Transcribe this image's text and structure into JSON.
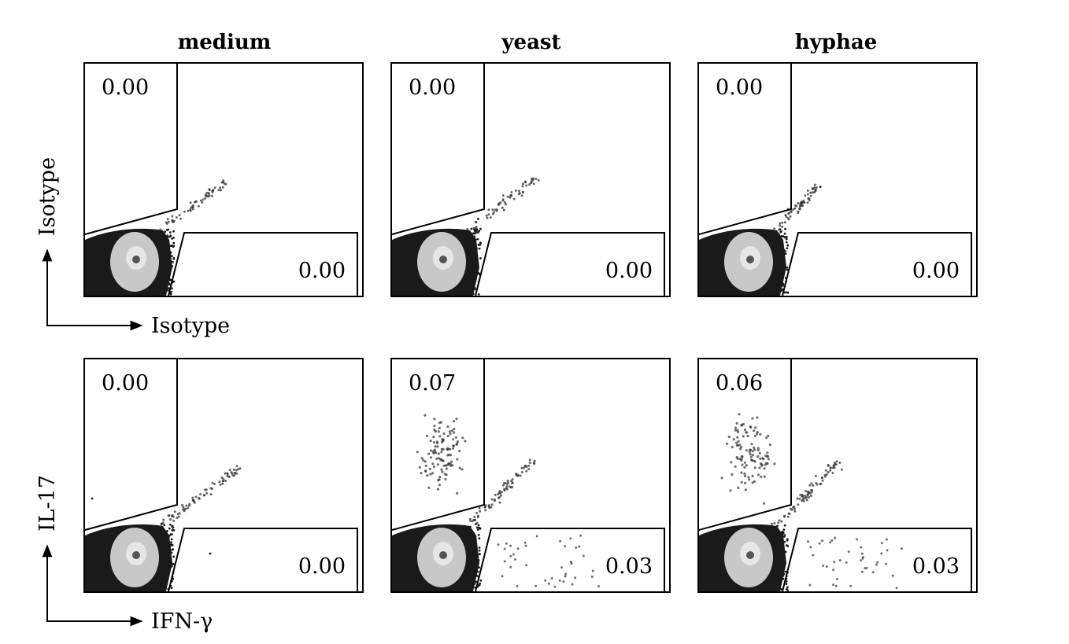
{
  "chart_data": {
    "type": "scatter",
    "columns": [
      "medium",
      "yeast",
      "hyphae"
    ],
    "rows": [
      {
        "row_id": "isotype",
        "xlabel": "Isotype",
        "ylabel": "Isotype",
        "panels": [
          {
            "column": "medium",
            "upper_left": "0.00",
            "lower_right": "0.00"
          },
          {
            "column": "yeast",
            "upper_left": "0.00",
            "lower_right": "0.00"
          },
          {
            "column": "hyphae",
            "upper_left": "0.00",
            "lower_right": "0.00"
          }
        ]
      },
      {
        "row_id": "stained",
        "xlabel": "IFN-γ",
        "ylabel": "IL-17",
        "panels": [
          {
            "column": "medium",
            "upper_left": "0.00",
            "lower_right": "0.00"
          },
          {
            "column": "yeast",
            "upper_left": "0.07",
            "lower_right": "0.03"
          },
          {
            "column": "hyphae",
            "upper_left": "0.06",
            "lower_right": "0.03"
          }
        ]
      }
    ],
    "legend": "none",
    "grid": false,
    "colors": {
      "frame": "#000000",
      "dense_core": "#c8c8c8",
      "dense_ring": "#1a1a1a",
      "events": "#333333"
    }
  }
}
